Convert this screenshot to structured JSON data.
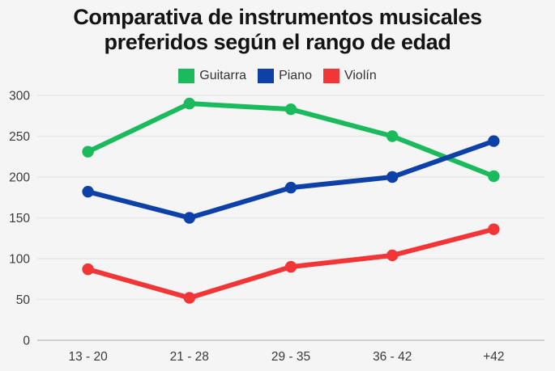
{
  "title_lines": [
    "Comparativa de instrumentos musicales",
    "preferidos según el rango de edad"
  ],
  "chart_data": {
    "type": "line",
    "title": "Comparativa de instrumentos musicales preferidos según el rango de edad",
    "categories": [
      "13 - 20",
      "21 - 28",
      "29 - 35",
      "36 - 42",
      "+42"
    ],
    "series": [
      {
        "name": "Guitarra",
        "color": "#1bba5c",
        "values": [
          231,
          290,
          283,
          250,
          201
        ]
      },
      {
        "name": "Piano",
        "color": "#0d41a7",
        "values": [
          182,
          150,
          187,
          200,
          244
        ]
      },
      {
        "name": "Violín",
        "color": "#f23637",
        "values": [
          87,
          52,
          90,
          104,
          136
        ]
      }
    ],
    "yticks": [
      0,
      50,
      100,
      150,
      200,
      250,
      300
    ],
    "ylim": [
      0,
      300
    ],
    "xlabel": "",
    "ylabel": "",
    "grid": true,
    "legend_position": "top-center",
    "background_color": "#f5f5f6",
    "gridline_color": "#e8e8e8",
    "axis_line_color": "#cfcfcf",
    "axis_text_color": "#3a3a3a"
  }
}
